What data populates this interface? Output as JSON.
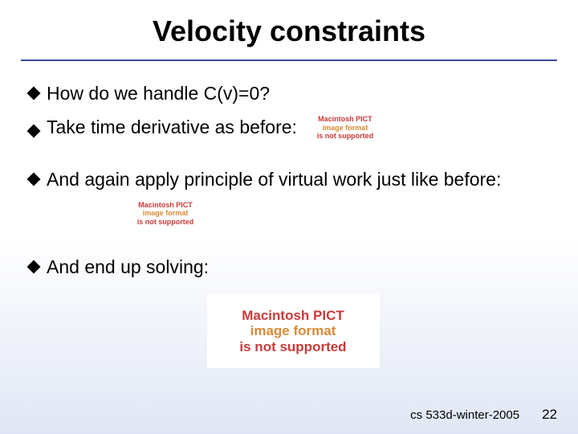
{
  "slide": {
    "title": "Velocity constraints",
    "divider_color": "#3b4a9a",
    "bullet_color": "#000000",
    "bullets": {
      "b1": "How do we handle C(v)=0?",
      "b2": "Take time derivative as before:",
      "b3": "And again apply principle of virtual work just like before:",
      "b4": "And end up solving:"
    },
    "placeholder_error": {
      "line1": "Macintosh PICT",
      "line2": "image format",
      "line3": "is not supported",
      "text_colors": {
        "line1": "#c93a3a",
        "line2": "#d88a35",
        "line3": "#c93a3a"
      },
      "background": "#ffffff"
    },
    "footer": {
      "course": "cs 533d-winter-2005",
      "page": "22"
    },
    "typography": {
      "title_fontsize": 36,
      "bullet_fontsize": 23,
      "footer_fontsize": 15
    },
    "background_gradient": {
      "top": "#ffffff",
      "bottom": "#e0e6f5"
    }
  }
}
